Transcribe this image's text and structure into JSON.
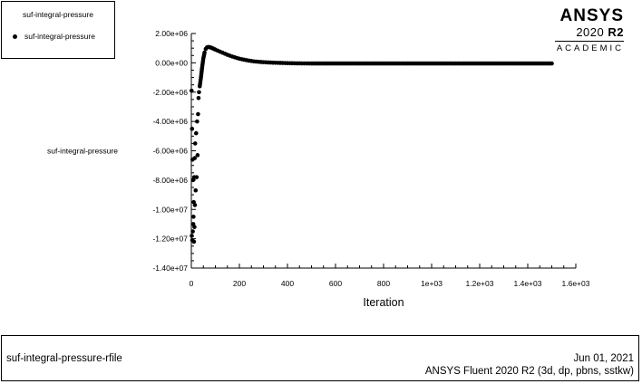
{
  "legend": {
    "title": "suf-integral-pressure",
    "entry": "suf-integral-pressure"
  },
  "logo": {
    "brand": "ANSYS",
    "version_year": "2020",
    "version_rel": "R2",
    "edition": "ACADEMIC"
  },
  "footer": {
    "file": "suf-integral-pressure-rfile",
    "date": "Jun 01, 2021",
    "version": "ANSYS Fluent 2020 R2 (3d, dp, pbns, sstkw)"
  },
  "colors": {
    "marker": "#000000",
    "axis": "#000000",
    "background": "#ffffff"
  },
  "chart_data": {
    "type": "scatter",
    "xlabel": "Iteration",
    "ylabel": "suf-integral-pressure",
    "xlim": [
      0,
      1600
    ],
    "ylim": [
      -14000000,
      2000000
    ],
    "x_ticks": [
      0,
      200,
      400,
      600,
      800,
      1000,
      1200,
      1400,
      1600
    ],
    "x_tick_labels": [
      "0",
      "200",
      "400",
      "600",
      "800",
      "1e+03",
      "1.2e+03",
      "1.4e+03",
      "1.6e+03"
    ],
    "y_ticks": [
      2000000,
      0,
      -2000000,
      -4000000,
      -6000000,
      -8000000,
      -10000000,
      -12000000,
      -14000000
    ],
    "y_tick_labels": [
      "2.00e+06",
      "0.00e+00",
      "-2.00e+06",
      "-4.00e+06",
      "-6.00e+06",
      "-8.00e+06",
      "-1.00e+07",
      "-1.20e+07",
      "-1.40e+07"
    ],
    "grid": false,
    "legend_position": "top-left",
    "series": [
      {
        "name": "suf-integral-pressure",
        "x": [
          1,
          2,
          3,
          4,
          5,
          6,
          7,
          8,
          9,
          10,
          11,
          12,
          13,
          14,
          15,
          16,
          18,
          20,
          22,
          24,
          26,
          28,
          30,
          32,
          35,
          40,
          45,
          50,
          55,
          60,
          65,
          70,
          75,
          80,
          85,
          90,
          95,
          100,
          110,
          120,
          130,
          140,
          150,
          160,
          170,
          180,
          190,
          200,
          220,
          240,
          260,
          280,
          300,
          320,
          340,
          360,
          380,
          400,
          420,
          440,
          460,
          480,
          500,
          550,
          600,
          650,
          700,
          750,
          800,
          850,
          900,
          950,
          1000,
          1050,
          1100,
          1150,
          1200,
          1250,
          1300,
          1350,
          1400,
          1450,
          1500
        ],
        "y": [
          -1900000,
          -11800000,
          -4500000,
          -12100000,
          -6600000,
          -11500000,
          -8000000,
          -11000000,
          -10500000,
          -9500000,
          -12200000,
          -7800000,
          -11200000,
          -6500000,
          -9700000,
          -5500000,
          -8700000,
          -4800000,
          -7800000,
          -4000000,
          -6300000,
          -3500000,
          -2400000,
          -2000000,
          -1600000,
          -1000000,
          -300000,
          300000,
          700000,
          950000,
          1050000,
          1080000,
          1070000,
          1050000,
          1020000,
          980000,
          940000,
          900000,
          830000,
          760000,
          690000,
          620000,
          550000,
          490000,
          430000,
          380000,
          330000,
          280000,
          210000,
          150000,
          100000,
          70000,
          45000,
          25000,
          10000,
          0,
          -10000,
          -20000,
          -30000,
          -35000,
          -40000,
          -42000,
          -44000,
          -45000,
          -45000,
          -45000,
          -45000,
          -45000,
          -45000,
          -45000,
          -45000,
          -45000,
          -45000,
          -45000,
          -45000,
          -45000,
          -45000,
          -45000,
          -45000,
          -45000,
          -45000,
          -45000,
          -45000
        ]
      }
    ]
  }
}
